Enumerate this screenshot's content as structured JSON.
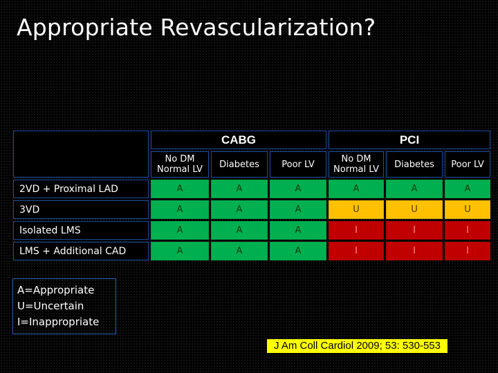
{
  "title": "Appropriate Revascularization?",
  "table": {
    "groups": [
      "CABG",
      "PCI"
    ],
    "subheaders": [
      "No DM\nNormal LV",
      "Diabetes",
      "Poor LV",
      "No DM\nNormal LV",
      "Diabetes",
      "Poor LV"
    ],
    "rows": [
      {
        "label": "2VD + Proximal LAD",
        "cells": [
          "A",
          "A",
          "A",
          "A",
          "A",
          "A"
        ]
      },
      {
        "label": "3VD",
        "cells": [
          "A",
          "A",
          "A",
          "U",
          "U",
          "U"
        ]
      },
      {
        "label": "Isolated LMS",
        "cells": [
          "A",
          "A",
          "A",
          "I",
          "I",
          "I"
        ]
      },
      {
        "label": "LMS + Additional CAD",
        "cells": [
          "A",
          "A",
          "A",
          "I",
          "I",
          "I"
        ]
      }
    ]
  },
  "legend": {
    "line1": "A=Appropriate",
    "line2": "U=Uncertain",
    "line3": "I=Inappropriate"
  },
  "citation": "J Am Coll Cardiol 2009; 53: 530-553",
  "colors": {
    "appropriate": "#00b050",
    "uncertain": "#ffc000",
    "inappropriate": "#c00000"
  }
}
